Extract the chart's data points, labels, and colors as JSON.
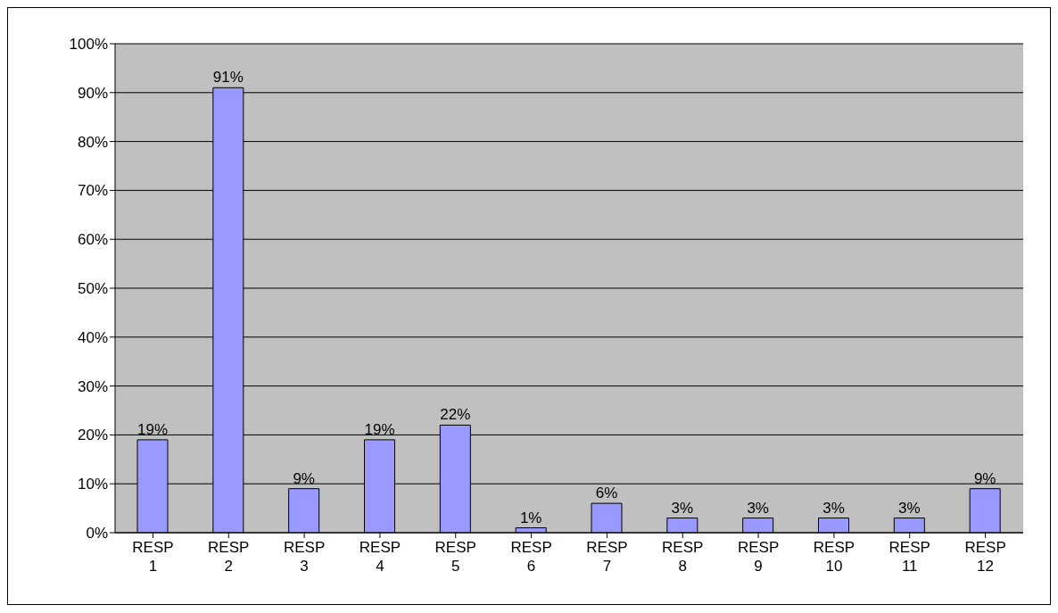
{
  "chart_data": {
    "type": "bar",
    "categories": [
      "RESP 1",
      "RESP 2",
      "RESP 3",
      "RESP 4",
      "RESP 5",
      "RESP 6",
      "RESP 7",
      "RESP 8",
      "RESP 9",
      "RESP 10",
      "RESP 11",
      "RESP 12"
    ],
    "values": [
      19,
      91,
      9,
      19,
      22,
      1,
      6,
      3,
      3,
      3,
      3,
      9
    ],
    "value_labels": [
      "19%",
      "91%",
      "9%",
      "19%",
      "22%",
      "1%",
      "6%",
      "3%",
      "3%",
      "3%",
      "3%",
      "9%"
    ],
    "color": "#9999ff",
    "ylim": [
      0,
      100
    ],
    "yticks": [
      {
        "value": 0,
        "label": "0%"
      },
      {
        "value": 10,
        "label": "10%"
      },
      {
        "value": 20,
        "label": "20%"
      },
      {
        "value": 30,
        "label": "30%"
      },
      {
        "value": 40,
        "label": "40%"
      },
      {
        "value": 50,
        "label": "50%"
      },
      {
        "value": 60,
        "label": "60%"
      },
      {
        "value": 70,
        "label": "70%"
      },
      {
        "value": 80,
        "label": "80%"
      },
      {
        "value": 90,
        "label": "90%"
      },
      {
        "value": 100,
        "label": "100%"
      }
    ],
    "grid": "y",
    "legend": false
  }
}
